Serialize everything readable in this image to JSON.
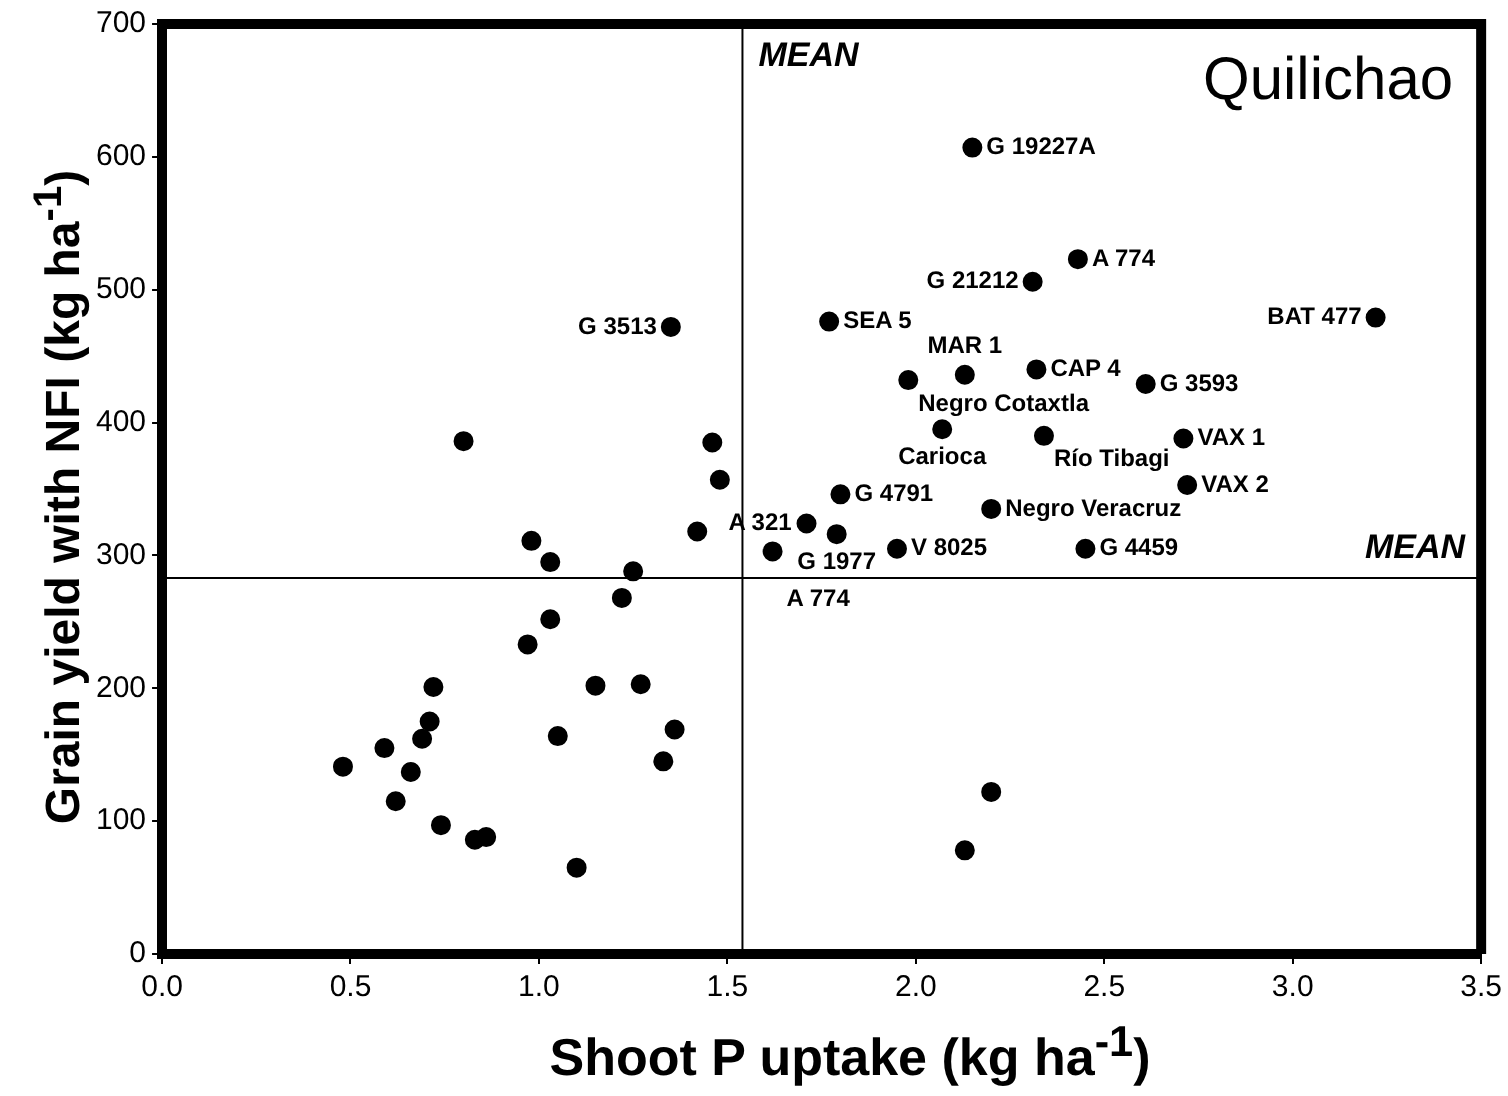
{
  "chart_data": {
    "type": "scatter",
    "title": "Quilichao",
    "xlabel": "Shoot P uptake (kg ha$^{-1}$)",
    "ylabel": "Grain yield with NFI (kg ha$^{-1}$)",
    "series": [
      {
        "color": "#000000",
        "x": [
          2.15,
          2.43,
          2.31,
          3.22,
          1.77,
          1.35,
          1.98,
          2.13,
          2.32,
          2.61,
          2.07,
          2.34,
          2.71,
          2.72,
          1.8,
          1.71,
          1.79,
          2.2,
          1.95,
          2.45,
          1.62,
          1.46,
          1.48,
          1.42,
          0.98,
          1.03,
          1.25,
          1.22,
          1.03,
          0.8,
          0.97,
          0.48,
          0.59,
          0.66,
          0.62,
          0.69,
          0.71,
          0.72,
          0.74,
          0.83,
          0.86,
          1.05,
          1.1,
          1.15,
          1.27,
          1.33,
          1.36,
          2.13,
          2.2
        ],
        "values": [
          607,
          523,
          506,
          479,
          476,
          472,
          432,
          436,
          440,
          429,
          395,
          390,
          388,
          353,
          346,
          324,
          316,
          335,
          305,
          305,
          303,
          385,
          357,
          318,
          311,
          295,
          288,
          268,
          252,
          386,
          233,
          141,
          155,
          137,
          115,
          162,
          175,
          201,
          97,
          86,
          88,
          164,
          65,
          202,
          203,
          145,
          169,
          78,
          122
        ]
      }
    ],
    "xlim": [
      0,
      3.5
    ],
    "xticks": [
      {
        "value": 0,
        "label": "0.0"
      },
      0.5,
      {
        "value": 1,
        "label": "1.0"
      },
      1.5,
      {
        "value": 2,
        "label": "2.0"
      },
      2.5,
      {
        "value": 3,
        "label": "3.0"
      },
      3.5
    ],
    "ylim": [
      0,
      700
    ],
    "yticks": [
      0,
      100,
      200,
      300,
      400,
      500,
      600,
      700
    ],
    "grid": false,
    "legend": false,
    "marker": "circle",
    "ref_lines": [
      {
        "axis": "x",
        "value": 1.54,
        "label": "MEAN"
      },
      {
        "axis": "y",
        "value": 283,
        "label": "MEAN"
      }
    ],
    "annotations": [
      {
        "text": "G 19227A",
        "x": 2.15,
        "y": 607
      },
      {
        "text": "A 774",
        "x": 2.43,
        "y": 523
      },
      {
        "text": "G 21212",
        "x": 2.31,
        "y": 506
      },
      {
        "text": "BAT 477",
        "x": 3.22,
        "y": 479
      },
      {
        "text": "SEA 5",
        "x": 1.77,
        "y": 476
      },
      {
        "text": "G 3513",
        "x": 1.35,
        "y": 472
      },
      {
        "text": "Negro Cotaxtla",
        "x": 1.98,
        "y": 432
      },
      {
        "text": "MAR 1",
        "x": 2.13,
        "y": 436
      },
      {
        "text": "CAP 4",
        "x": 2.32,
        "y": 440
      },
      {
        "text": "G 3593",
        "x": 2.61,
        "y": 429
      },
      {
        "text": "Carioca",
        "x": 2.07,
        "y": 395
      },
      {
        "text": "Río Tibagi",
        "x": 2.34,
        "y": 390
      },
      {
        "text": "VAX 1",
        "x": 2.71,
        "y": 388
      },
      {
        "text": "VAX 2",
        "x": 2.72,
        "y": 353
      },
      {
        "text": "G 4791",
        "x": 1.8,
        "y": 346
      },
      {
        "text": "A 321",
        "x": 1.71,
        "y": 324
      },
      {
        "text": "G 1977",
        "x": 1.79,
        "y": 316
      },
      {
        "text": "Negro Veracruz",
        "x": 2.2,
        "y": 335
      },
      {
        "text": "V 8025",
        "x": 1.95,
        "y": 305
      },
      {
        "text": "G 4459",
        "x": 2.45,
        "y": 305
      },
      {
        "text": "A 774",
        "x": 1.62,
        "y": 303
      }
    ]
  }
}
